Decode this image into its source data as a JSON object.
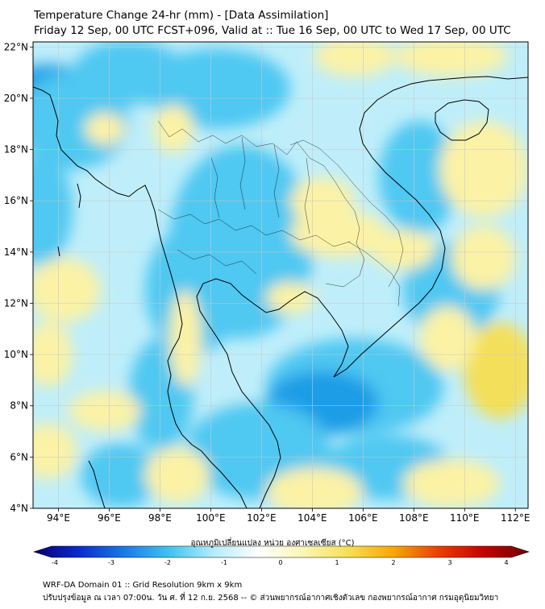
{
  "header": {
    "title": "Temperature Change 24-hr (mm) - [Data Assimilation]",
    "subtitle": "Friday 12 Sep, 00 UTC FCST+096, Valid at :: Tue 16 Sep, 00 UTC to Wed 17 Sep, 00 UTC"
  },
  "map": {
    "lon_range": [
      93,
      112.5
    ],
    "lat_range": [
      4,
      22.2
    ],
    "x_ticks": [
      "94°E",
      "96°E",
      "98°E",
      "100°E",
      "102°E",
      "104°E",
      "106°E",
      "108°E",
      "110°E",
      "112°E"
    ],
    "y_ticks": [
      "22°N",
      "20°N",
      "18°N",
      "16°N",
      "14°N",
      "12°N",
      "10°N",
      "8°N",
      "6°N",
      "4°N"
    ],
    "colors": {
      "background": "#bfeefa",
      "cool": "#4fc8f2",
      "cooler": "#1e9de6",
      "warm": "#fbf2a6",
      "warmer": "#f4df5a",
      "coast": "#000000",
      "grid": "#c8c8c8"
    }
  },
  "colorbar": {
    "label": "อุณหภูมิเปลี่ยนแปลง หน่วย องศาเซลเซียส (°C)",
    "ticks": [
      "-4",
      "-3",
      "-2",
      "-1",
      "0",
      "1",
      "2",
      "3",
      "4"
    ],
    "range": [
      -4,
      4
    ],
    "colors": [
      "#08006e",
      "#0a2ad0",
      "#1a78e8",
      "#3ec4f0",
      "#b4ecfa",
      "#ffffff",
      "#faf6b4",
      "#f6e050",
      "#f6a800",
      "#ee3c00",
      "#c80000",
      "#6e0000"
    ]
  },
  "footer": {
    "line1": "WRF-DA Domain 01 :: Grid Resolution 9km x 9km",
    "line2": "ปรับปรุงข้อมูล ณ เวลา 07:00น. วัน ศ. ที่ 12 ก.ย. 2568 -- © ส่วนพยากรณ์อากาศเชิงตัวเลข กองพยากรณ์อากาศ กรมอุตุนิยมวิทยา"
  }
}
